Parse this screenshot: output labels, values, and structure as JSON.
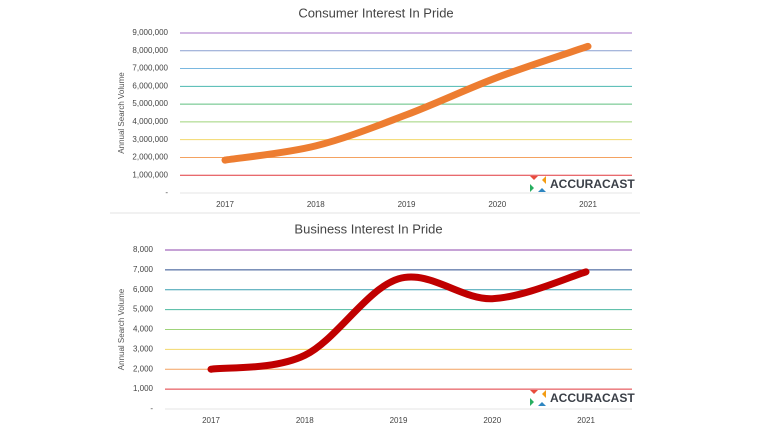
{
  "chart_data": [
    {
      "type": "line",
      "title": "Consumer Interest In Pride",
      "y_label": "Annual Search Volume",
      "watermark": "ACCURACAST",
      "categories": [
        "2017",
        "2018",
        "2019",
        "2020",
        "2021"
      ],
      "series": [
        {
          "color": "#ed7d31",
          "values": [
            1850000,
            2650000,
            4400000,
            6500000,
            8250000
          ]
        }
      ],
      "ylim": [
        0,
        9000000
      ],
      "yticks": [
        {
          "value": 0,
          "label": "-"
        },
        {
          "value": 1000000,
          "label": "1,000,000"
        },
        {
          "value": 2000000,
          "label": "2,000,000"
        },
        {
          "value": 3000000,
          "label": "3,000,000"
        },
        {
          "value": 4000000,
          "label": "4,000,000"
        },
        {
          "value": 5000000,
          "label": "5,000,000"
        },
        {
          "value": 6000000,
          "label": "6,000,000"
        },
        {
          "value": 7000000,
          "label": "7,000,000"
        },
        {
          "value": 8000000,
          "label": "8,000,000"
        },
        {
          "value": 9000000,
          "label": "9,000,000"
        }
      ],
      "grid": true,
      "grid_colors": [
        "#e6e6e6",
        "#e0393e",
        "#f4a261",
        "#f2d86b",
        "#9fd37a",
        "#5fbf7f",
        "#4cb8b0",
        "#7ab8e0",
        "#8a9fd0",
        "#a671c7"
      ]
    },
    {
      "type": "line",
      "title": "Business Interest In Pride",
      "y_label": "Annual Search Volume",
      "watermark": "ACCURACAST",
      "categories": [
        "2017",
        "2018",
        "2019",
        "2020",
        "2021"
      ],
      "series": [
        {
          "color": "#c00000",
          "values": [
            2000,
            2700,
            6550,
            5550,
            6900
          ]
        }
      ],
      "ylim": [
        0,
        8000
      ],
      "yticks": [
        {
          "value": 0,
          "label": "-"
        },
        {
          "value": 1000,
          "label": "1,000"
        },
        {
          "value": 2000,
          "label": "2,000"
        },
        {
          "value": 3000,
          "label": "3,000"
        },
        {
          "value": 4000,
          "label": "4,000"
        },
        {
          "value": 5000,
          "label": "5,000"
        },
        {
          "value": 6000,
          "label": "6,000"
        },
        {
          "value": 7000,
          "label": "7,000"
        },
        {
          "value": 8000,
          "label": "8,000"
        }
      ],
      "grid": true,
      "grid_colors": [
        "#e6e6e6",
        "#e0393e",
        "#f4a261",
        "#f2d86b",
        "#9fd37a",
        "#4cb8a0",
        "#3a9fb0",
        "#2f4f8f",
        "#8e44ad"
      ]
    }
  ]
}
